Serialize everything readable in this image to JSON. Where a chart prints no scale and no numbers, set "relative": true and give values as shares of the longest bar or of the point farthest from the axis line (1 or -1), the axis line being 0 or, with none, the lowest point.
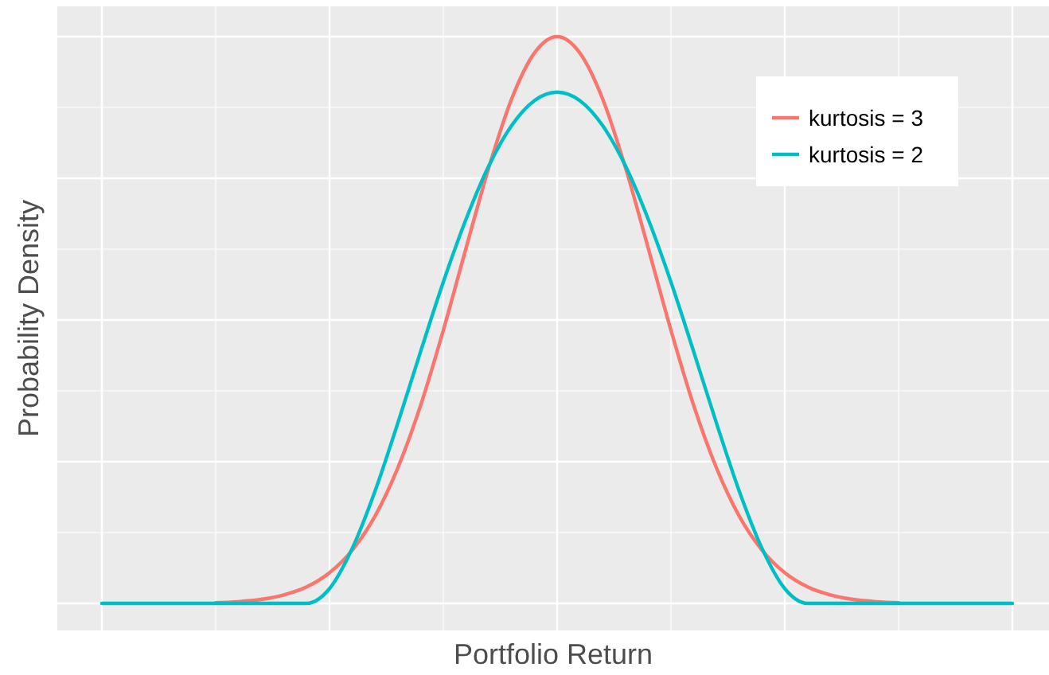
{
  "chart_data": {
    "type": "line",
    "relative": true,
    "xlabel": "Portfolio Return",
    "ylabel": "Probability Density",
    "grid": true,
    "legend": "top right",
    "line_style": "solid",
    "marker": "none",
    "categories": [
      null,
      null,
      null,
      null,
      null,
      null,
      null,
      null,
      null,
      null,
      null,
      null,
      null,
      null,
      null,
      null,
      null,
      null,
      null,
      null,
      null,
      null,
      null,
      null,
      null,
      null,
      null,
      null,
      null,
      null,
      null,
      null,
      null,
      null,
      null,
      null,
      null,
      null,
      null,
      null,
      null
    ],
    "series": [
      {
        "name": "kurtosis = 3",
        "color": "#f8766d",
        "values": [
          null,
          null,
          null,
          null,
          null,
          0.001,
          0.003,
          0.007,
          0.015,
          0.029,
          0.054,
          0.094,
          0.154,
          0.239,
          0.349,
          0.482,
          0.627,
          0.769,
          0.89,
          0.971,
          1,
          0.971,
          0.89,
          0.769,
          0.627,
          0.482,
          0.349,
          0.239,
          0.154,
          0.094,
          0.054,
          0.029,
          0.015,
          0.007,
          0.003,
          0.001,
          null,
          null,
          null,
          null,
          null
        ]
      },
      {
        "name": "kurtosis = 2",
        "color": "#00bfc4",
        "values": [
          0,
          0,
          0,
          0,
          0,
          0,
          0,
          0,
          0,
          0,
          0.026,
          0.097,
          0.198,
          0.318,
          0.444,
          0.567,
          0.678,
          0.772,
          0.843,
          0.887,
          0.902,
          0.887,
          0.843,
          0.772,
          0.678,
          0.567,
          0.444,
          0.318,
          0.198,
          0.097,
          0.026,
          0,
          0,
          0,
          0,
          0,
          0,
          0,
          0,
          0,
          0
        ]
      }
    ]
  }
}
